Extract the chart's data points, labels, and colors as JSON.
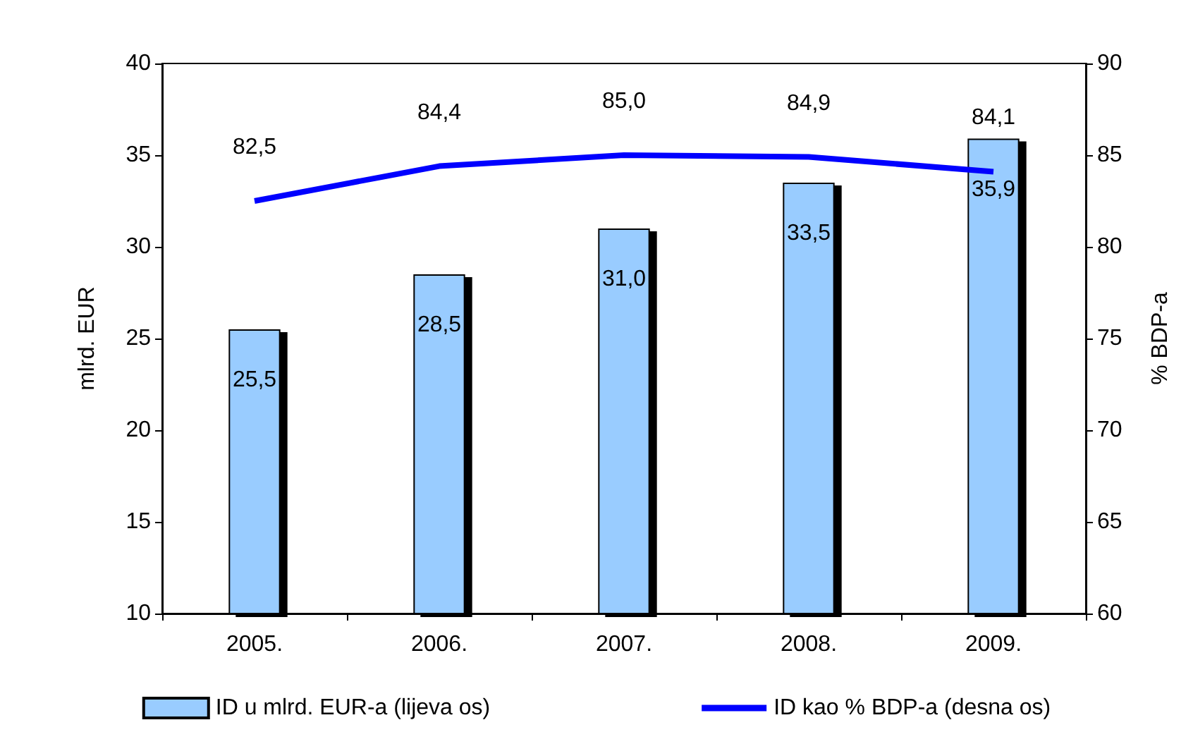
{
  "chart_data": {
    "type": "bar",
    "categories": [
      "2005.",
      "2006.",
      "2007.",
      "2008.",
      "2009."
    ],
    "ylabel": "mlrd. EUR",
    "y2label": "% BDP-a",
    "series": [
      {
        "name": "ID u mlrd. EUR-a (lijeva os)",
        "color": "#99ccff",
        "values": [
          25.5,
          28.5,
          31.0,
          33.5,
          35.9
        ],
        "value_labels": [
          "25,5",
          "28,5",
          "31,0",
          "33,5",
          "35,9"
        ]
      },
      {
        "name": "ID kao % BDP-a (desna os)",
        "type": "line",
        "axis": "y2",
        "color": "#0000ff",
        "values": [
          82.5,
          84.4,
          85.0,
          84.9,
          84.1
        ],
        "value_labels": [
          "82,5",
          "84,4",
          "85,0",
          "84,9",
          "84,1"
        ]
      }
    ],
    "ylim": [
      10,
      40
    ],
    "yticks": [
      10,
      15,
      20,
      25,
      30,
      35,
      40
    ],
    "y2lim": [
      60,
      90
    ],
    "y2ticks": [
      60,
      65,
      70,
      75,
      80,
      85,
      90
    ],
    "grid": false,
    "legend": "bottom",
    "marker": "none"
  }
}
